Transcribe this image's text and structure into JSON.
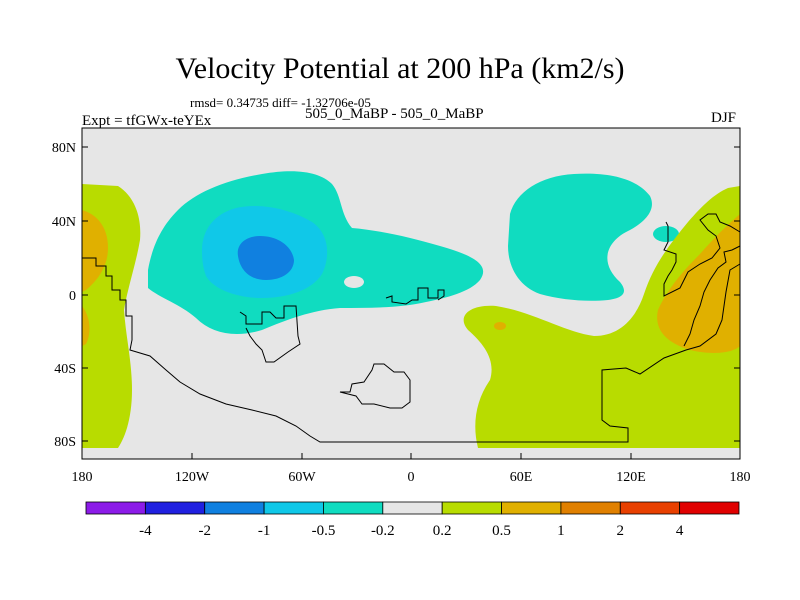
{
  "title": "Velocity Potential at 200 hPa (km2/s)",
  "stats_text": "rmsd= 0.34735 diff= -1.32706e-05",
  "left_label": "Expt = tfGWx-teYEx",
  "center_label": "505_0_MaBP - 505_0_MaBP",
  "right_label": "DJF",
  "lat_ticks": [
    "80N",
    "40N",
    "0",
    "40S",
    "80S"
  ],
  "lon_ticks": [
    "180",
    "120W",
    "60W",
    "0",
    "60E",
    "120E",
    "180"
  ],
  "colorbar": {
    "colors": [
      "#8c1be8",
      "#2020e0",
      "#1080e0",
      "#10c8e8",
      "#10dcc0",
      "#e6e6e6",
      "#b8dc00",
      "#e0b000",
      "#e08000",
      "#e84000",
      "#e00000"
    ],
    "labels": [
      "-4",
      "-2",
      "-1",
      "-0.5",
      "-0.2",
      "0.2",
      "0.5",
      "1",
      "2",
      "4"
    ]
  },
  "colors": {
    "background": "#e6e6e6",
    "teal": "#10dcc0",
    "cyan": "#10c8e8",
    "blue": "#1080e0",
    "yellowgreen": "#b8dc00",
    "orange": "#e0b000",
    "darkorange": "#e08000"
  }
}
